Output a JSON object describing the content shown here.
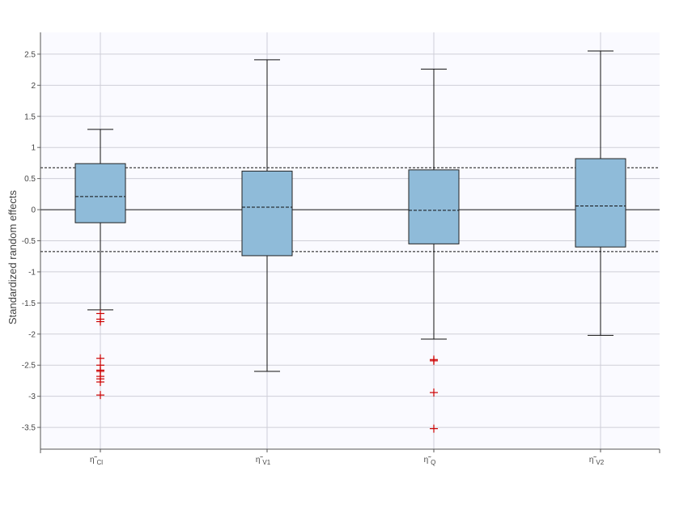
{
  "chart_data": {
    "type": "boxplot",
    "ylabel": "Standardized random effects",
    "ylim": [
      -3.85,
      2.85
    ],
    "yticks": [
      2.5,
      2,
      1.5,
      1,
      0.5,
      0,
      -0.5,
      -1,
      -1.5,
      -2,
      -2.5,
      -3,
      -3.5
    ],
    "ytick_labels": [
      "2.5",
      "2",
      "1.5",
      "1",
      "0.5",
      "0",
      "-0.5",
      "-1",
      "-1.5",
      "-2",
      "-2.5",
      "-3",
      "-3.5"
    ],
    "reference_lines": [
      0.674,
      -0.674
    ],
    "zero_line": 0,
    "grid": true,
    "colors": {
      "box_fill": "#8fbbd9",
      "box_stroke": "#222222",
      "outlier": "#cc0000",
      "plot_bg": "#fafaff",
      "grid": "#cfcfd8"
    },
    "categories": [
      {
        "symbol": "η̃",
        "sub": "Cl"
      },
      {
        "symbol": "η̃",
        "sub": "V1"
      },
      {
        "symbol": "η̃",
        "sub": "Q"
      },
      {
        "symbol": "η̃",
        "sub": "V2"
      }
    ],
    "boxes": [
      {
        "whisker_low": -1.61,
        "q1": -0.21,
        "median": 0.21,
        "q3": 0.74,
        "whisker_high": 1.29,
        "outliers": [
          -1.67,
          -1.76,
          -1.8,
          -2.39,
          -2.5,
          -2.58,
          -2.6,
          -2.68,
          -2.72,
          -2.77,
          -2.98
        ]
      },
      {
        "whisker_low": -2.6,
        "q1": -0.74,
        "median": 0.04,
        "q3": 0.62,
        "whisker_high": 2.41,
        "outliers": []
      },
      {
        "whisker_low": -2.08,
        "q1": -0.55,
        "median": -0.01,
        "q3": 0.64,
        "whisker_high": 2.26,
        "outliers": [
          -2.41,
          -2.43,
          -2.94,
          -3.52
        ]
      },
      {
        "whisker_low": -2.02,
        "q1": -0.6,
        "median": 0.06,
        "q3": 0.82,
        "whisker_high": 2.55,
        "outliers": []
      }
    ]
  }
}
